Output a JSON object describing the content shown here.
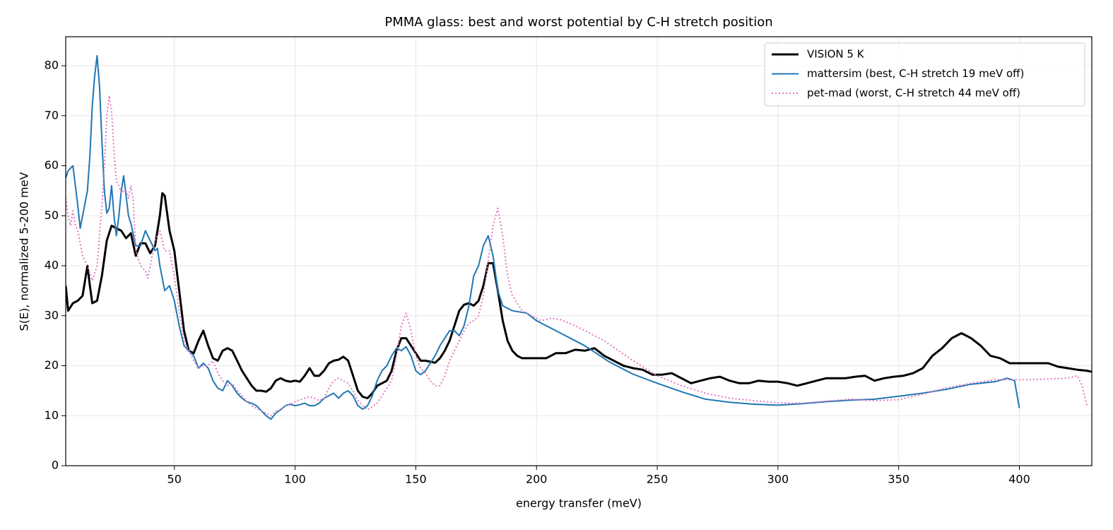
{
  "chart_data": {
    "type": "line",
    "title": "PMMA glass: best and worst potential by C-H stretch position",
    "xlabel": "energy transfer (meV)",
    "ylabel": "S(E), normalized 5-200 meV",
    "xlim": [
      5,
      430
    ],
    "ylim": [
      0,
      85.8
    ],
    "xticks": [
      50,
      100,
      150,
      200,
      250,
      300,
      350,
      400
    ],
    "yticks": [
      0,
      10,
      20,
      30,
      40,
      50,
      60,
      70,
      80
    ],
    "grid": true,
    "legend": "upper right",
    "series": [
      {
        "name": "VISION 5 K",
        "color": "#000000",
        "linestyle": "solid",
        "x": [
          5,
          6,
          8,
          10,
          12,
          14,
          15,
          16,
          18,
          20,
          22,
          24,
          26,
          28,
          30,
          32,
          34,
          36,
          38,
          40,
          42,
          44,
          45,
          46,
          48,
          50,
          52,
          54,
          56,
          58,
          60,
          62,
          64,
          66,
          68,
          70,
          72,
          74,
          76,
          78,
          80,
          82,
          84,
          86,
          88,
          90,
          92,
          94,
          96,
          98,
          100,
          102,
          104,
          106,
          108,
          110,
          112,
          114,
          116,
          118,
          120,
          122,
          124,
          126,
          128,
          130,
          132,
          134,
          136,
          138,
          140,
          142,
          144,
          146,
          148,
          150,
          152,
          154,
          156,
          158,
          160,
          162,
          164,
          166,
          168,
          170,
          172,
          174,
          176,
          178,
          180,
          182,
          184,
          186,
          188,
          190,
          192,
          194,
          196,
          198,
          200,
          204,
          208,
          212,
          216,
          220,
          224,
          228,
          232,
          236,
          240,
          244,
          248,
          252,
          256,
          260,
          264,
          268,
          272,
          276,
          280,
          284,
          288,
          292,
          296,
          300,
          304,
          308,
          312,
          316,
          320,
          324,
          328,
          332,
          336,
          340,
          344,
          348,
          352,
          356,
          360,
          364,
          368,
          372,
          376,
          380,
          384,
          388,
          392,
          396,
          400,
          404,
          408,
          412,
          416,
          420,
          424,
          428,
          430
        ],
        "values": [
          36,
          31,
          32.5,
          33,
          34,
          40,
          36,
          32.5,
          33,
          38,
          45,
          48,
          47.5,
          47,
          45.5,
          46.5,
          42,
          44.5,
          44.5,
          42.5,
          44,
          50,
          54.5,
          54,
          47,
          43,
          35,
          27,
          23,
          22.5,
          25,
          27,
          24,
          21.5,
          21,
          23,
          23.5,
          23,
          21,
          19,
          17.5,
          16,
          15,
          15,
          14.8,
          15.5,
          17,
          17.5,
          17,
          16.8,
          17,
          16.8,
          18,
          19.5,
          18,
          18,
          19,
          20.5,
          21,
          21.2,
          21.8,
          21,
          18,
          15,
          13.8,
          13.5,
          14.5,
          16,
          16.5,
          17,
          19,
          23,
          25.5,
          25.5,
          24,
          22.5,
          21,
          21,
          20.8,
          20.6,
          21.5,
          23,
          25,
          28,
          31,
          32.2,
          32.5,
          32,
          33,
          36,
          40.5,
          40.5,
          35,
          29,
          25,
          23,
          22,
          21.5,
          21.5,
          21.5,
          21.5,
          21.5,
          22.5,
          22.5,
          23.2,
          23,
          23.5,
          22,
          21,
          20,
          19.5,
          19.2,
          18.2,
          18.2,
          18.5,
          17.5,
          16.5,
          17,
          17.5,
          17.8,
          17,
          16.5,
          16.5,
          17,
          16.8,
          16.8,
          16.5,
          16,
          16.5,
          17,
          17.5,
          17.5,
          17.5,
          17.8,
          18,
          17,
          17.5,
          17.8,
          18,
          18.5,
          19.5,
          22,
          23.5,
          25.5,
          26.5,
          25.5,
          24,
          22,
          21.5,
          20.5,
          20.5,
          20.5,
          20.5,
          20.5,
          19.8,
          19.5,
          19.2,
          19,
          18.8
        ]
      },
      {
        "name": "mattersim (best, C-H stretch 19 meV off)",
        "color": "#1f77b4",
        "linestyle": "solid",
        "x": [
          5,
          6,
          8,
          10,
          11,
          12,
          14,
          15,
          16,
          17,
          18,
          19,
          20,
          21,
          22,
          23,
          24,
          25,
          26,
          27,
          28,
          29,
          30,
          31,
          32,
          34,
          36,
          38,
          40,
          42,
          43,
          44,
          46,
          48,
          50,
          52,
          54,
          56,
          58,
          60,
          62,
          64,
          66,
          68,
          70,
          72,
          74,
          76,
          78,
          80,
          82,
          84,
          86,
          88,
          90,
          92,
          94,
          96,
          98,
          100,
          102,
          104,
          106,
          108,
          110,
          112,
          114,
          116,
          118,
          120,
          122,
          124,
          126,
          128,
          130,
          132,
          134,
          136,
          138,
          140,
          142,
          144,
          146,
          148,
          150,
          152,
          154,
          156,
          158,
          160,
          162,
          164,
          166,
          168,
          170,
          172,
          174,
          176,
          178,
          180,
          182,
          184,
          186,
          190,
          196,
          200,
          210,
          220,
          230,
          240,
          250,
          260,
          270,
          280,
          290,
          300,
          310,
          320,
          330,
          340,
          350,
          360,
          370,
          380,
          390,
          395,
          398,
          400
        ],
        "values": [
          57.5,
          59,
          60,
          52,
          47.5,
          50,
          55,
          62,
          72,
          78,
          82,
          76,
          65,
          55,
          50.5,
          51.5,
          56,
          50,
          46,
          50,
          55,
          58,
          54,
          50,
          48.5,
          44,
          44,
          47,
          45,
          43,
          43.5,
          40,
          35,
          36,
          33,
          28,
          24,
          23,
          22,
          19.5,
          20.5,
          19.5,
          17,
          15.5,
          15,
          17,
          16,
          14.5,
          13.5,
          12.8,
          12.5,
          12,
          11,
          10,
          9.3,
          10.5,
          11.2,
          12,
          12.3,
          12,
          12.2,
          12.5,
          12,
          12,
          12.5,
          13.5,
          14,
          14.5,
          13.5,
          14.5,
          15,
          14,
          12,
          11.3,
          12,
          14,
          17,
          19,
          20,
          22,
          23.5,
          23,
          23.8,
          22,
          19,
          18.2,
          19,
          20.5,
          22,
          24,
          25.5,
          27,
          27,
          26,
          28,
          32,
          38,
          40,
          44,
          46,
          42,
          35,
          32,
          31,
          30.5,
          29,
          26.5,
          24,
          20.8,
          18.3,
          16.5,
          14.8,
          13.3,
          12.7,
          12.3,
          12.1,
          12.4,
          12.8,
          13.1,
          13.3,
          13.9,
          14.5,
          15.3,
          16.3,
          16.8,
          17.5,
          17,
          11.5
        ]
      },
      {
        "name": "pet-mad (worst, C-H stretch 44 meV off)",
        "color": "#e377c2",
        "linestyle": "dotted",
        "x": [
          5,
          6,
          7,
          8,
          9,
          10,
          12,
          14,
          16,
          18,
          20,
          21,
          22,
          23,
          24,
          25,
          26,
          27,
          28,
          29,
          30,
          31,
          32,
          33,
          34,
          36,
          38,
          39,
          40,
          42,
          44,
          46,
          48,
          50,
          52,
          54,
          56,
          58,
          60,
          62,
          64,
          66,
          68,
          70,
          72,
          74,
          76,
          78,
          80,
          82,
          84,
          86,
          88,
          90,
          92,
          94,
          96,
          98,
          100,
          102,
          104,
          106,
          108,
          110,
          112,
          114,
          116,
          118,
          120,
          122,
          124,
          126,
          128,
          130,
          132,
          134,
          136,
          138,
          140,
          142,
          144,
          146,
          148,
          150,
          152,
          154,
          156,
          158,
          160,
          162,
          164,
          166,
          168,
          170,
          172,
          174,
          176,
          178,
          180,
          182,
          184,
          186,
          188,
          190,
          194,
          198,
          202,
          206,
          210,
          216,
          222,
          228,
          234,
          240,
          250,
          260,
          270,
          280,
          290,
          300,
          310,
          320,
          330,
          340,
          350,
          360,
          370,
          380,
          390,
          400,
          410,
          420,
          424,
          426,
          428
        ],
        "values": [
          53.5,
          50,
          48,
          51,
          48,
          47,
          42,
          40,
          37,
          40,
          52,
          60,
          70,
          74,
          71,
          63,
          57,
          56,
          54.5,
          55,
          55,
          53.5,
          56,
          53,
          43,
          40,
          39,
          37.5,
          40,
          45,
          47,
          43,
          43,
          38,
          31,
          25,
          23,
          21,
          19.5,
          20,
          20,
          21,
          18.5,
          17,
          16,
          16.5,
          15,
          14,
          12.8,
          12,
          11.5,
          11,
          10.5,
          10,
          11,
          11.2,
          12,
          12.2,
          12.8,
          13.2,
          13.5,
          13.8,
          13.5,
          13,
          13.5,
          15.5,
          17,
          17.5,
          17,
          16.5,
          15,
          13,
          12,
          11.2,
          11.8,
          12.5,
          14,
          15.5,
          17,
          22,
          28,
          30.5,
          27,
          22,
          19.5,
          18.5,
          17,
          16,
          16,
          18,
          21,
          23,
          25,
          27,
          28.5,
          29,
          30,
          34,
          41,
          48,
          51.5,
          46,
          38,
          34,
          31,
          30,
          29,
          29.5,
          29.2,
          28,
          26.5,
          25,
          23,
          21,
          18,
          16,
          14.5,
          13.5,
          13,
          12.6,
          12.5,
          12.9,
          13.3,
          13,
          13.2,
          14.3,
          15.6,
          16.5,
          17.2,
          17.2,
          17.3,
          17.5,
          18,
          16,
          12
        ]
      }
    ]
  }
}
